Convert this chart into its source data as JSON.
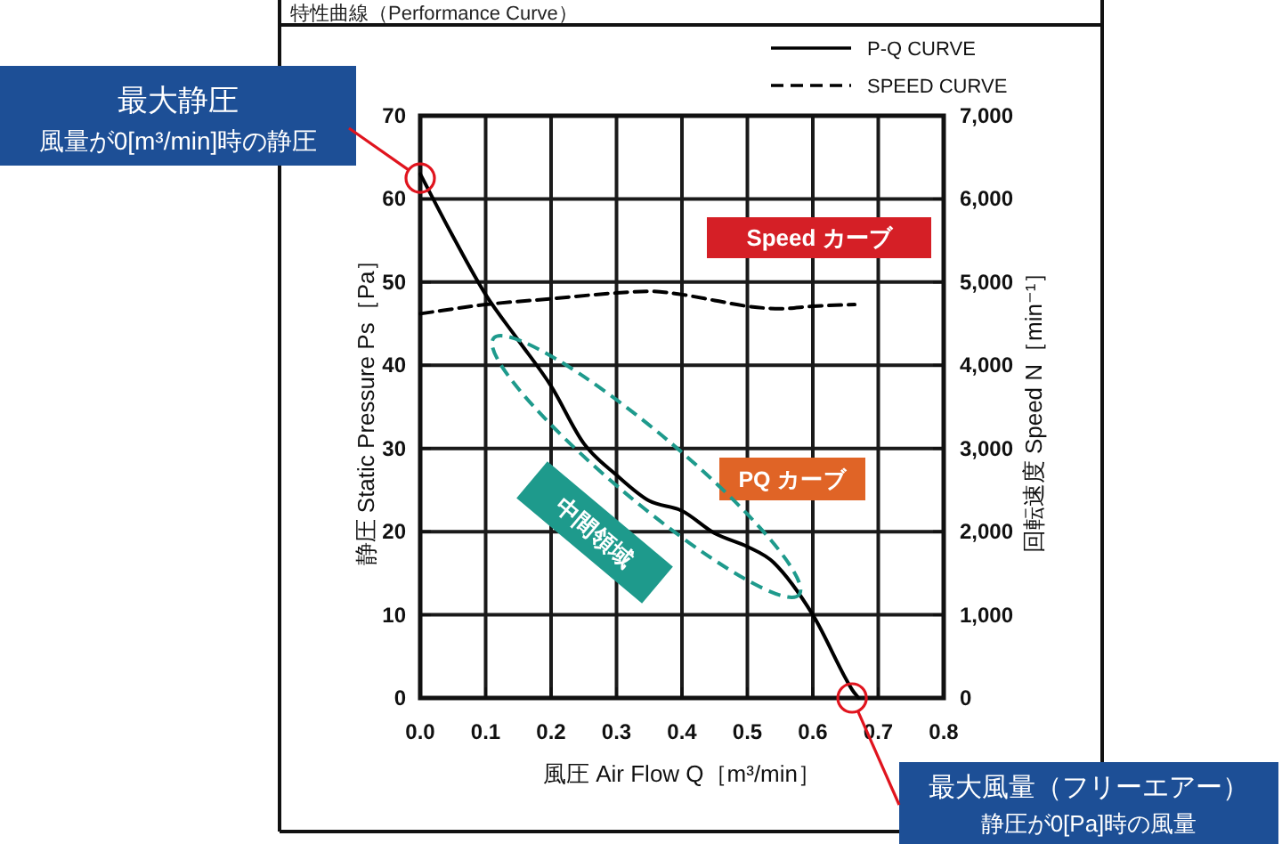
{
  "chart_data": {
    "type": "line",
    "title": "特性曲線（Performance Curve）",
    "xlabel": "風圧 Air Flow Q［m³/min］",
    "ylabel": "静圧 Static Pressure Ps［Pa］",
    "y2label": "回転速度 Speed N［min⁻¹］",
    "xlim": [
      0,
      0.8
    ],
    "xticks": [
      {
        "value": 0,
        "label": "0.0"
      },
      0.1,
      0.2,
      0.3,
      0.4,
      0.5,
      0.6,
      0.7,
      0.8
    ],
    "ylim": [
      0,
      70
    ],
    "yticks": [
      0,
      10,
      20,
      30,
      40,
      50,
      60,
      70
    ],
    "y2lim": [
      0,
      7000
    ],
    "y2ticks": [
      0,
      {
        "value": 1000,
        "label": "1,000"
      },
      {
        "value": 2000,
        "label": "2,000"
      },
      {
        "value": 3000,
        "label": "3,000"
      },
      {
        "value": 4000,
        "label": "4,000"
      },
      {
        "value": 5000,
        "label": "5,000"
      },
      {
        "value": 6000,
        "label": "6,000"
      },
      {
        "value": 7000,
        "label": "7,000"
      }
    ],
    "grid": true,
    "legend": "top right",
    "series": [
      {
        "name": "P-Q CURVE",
        "color": "#000000",
        "line_style": "solid",
        "x": [
          0,
          0.05,
          0.1,
          0.15,
          0.2,
          0.25,
          0.3,
          0.35,
          0.4,
          0.45,
          0.5,
          0.54,
          0.6,
          0.66,
          0.67
        ],
        "values": [
          63,
          55.5,
          48.5,
          43,
          37.5,
          30.6,
          26.8,
          23.7,
          22.5,
          19.8,
          18.2,
          16.3,
          10,
          1,
          0
        ]
      },
      {
        "name": "SPEED CURVE",
        "color": "#000000",
        "line_style": "dashed",
        "axis": "y2",
        "x": [
          0,
          0.1,
          0.2,
          0.3,
          0.35,
          0.4,
          0.45,
          0.5,
          0.55,
          0.6,
          0.664
        ],
        "values": [
          4620,
          4730,
          4800,
          4870,
          4890,
          4850,
          4780,
          4710,
          4680,
          4710,
          4730
        ]
      }
    ],
    "annotations": [
      "最大静圧",
      {
        "text": "風量が0[m³/min]時の静圧",
        "x": 0,
        "y": 62.5
      },
      {
        "text": "最大風量（フリーエアー）",
        "x": 0.66,
        "y": 0
      },
      "静圧が0[Pa]時の風量",
      "Speed カーブ",
      "PQ カーブ",
      "中間領域"
    ]
  }
}
